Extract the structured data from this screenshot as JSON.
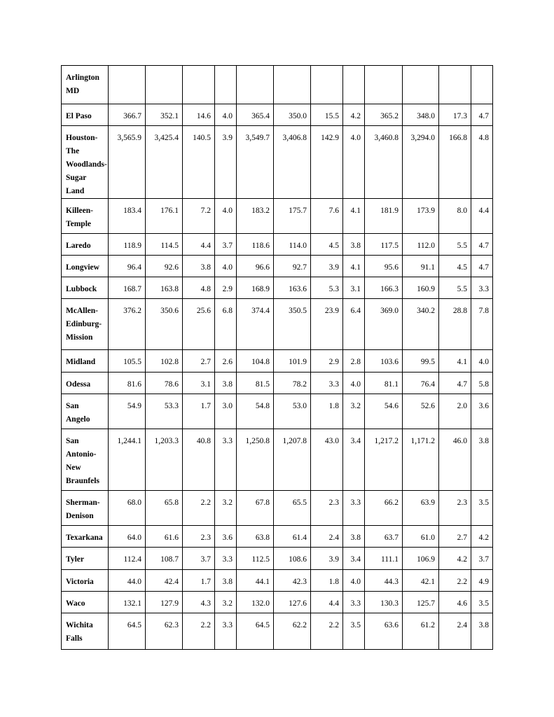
{
  "table": {
    "rows": [
      {
        "name": "Arlington MD",
        "values": [
          "",
          "",
          "",
          "",
          "",
          "",
          "",
          "",
          "",
          "",
          "",
          ""
        ]
      },
      {
        "name": "El Paso",
        "values": [
          "366.7",
          "352.1",
          "14.6",
          "4.0",
          "365.4",
          "350.0",
          "15.5",
          "4.2",
          "365.2",
          "348.0",
          "17.3",
          "4.7"
        ]
      },
      {
        "name": "Houston-The Woodlands-Sugar Land",
        "values": [
          "3,565.9",
          "3,425.4",
          "140.5",
          "3.9",
          "3,549.7",
          "3,406.8",
          "142.9",
          "4.0",
          "3,460.8",
          "3,294.0",
          "166.8",
          "4.8"
        ]
      },
      {
        "name": "Killeen-Temple",
        "values": [
          "183.4",
          "176.1",
          "7.2",
          "4.0",
          "183.2",
          "175.7",
          "7.6",
          "4.1",
          "181.9",
          "173.9",
          "8.0",
          "4.4"
        ]
      },
      {
        "name": "Laredo",
        "values": [
          "118.9",
          "114.5",
          "4.4",
          "3.7",
          "118.6",
          "114.0",
          "4.5",
          "3.8",
          "117.5",
          "112.0",
          "5.5",
          "4.7"
        ]
      },
      {
        "name": "Longview",
        "values": [
          "96.4",
          "92.6",
          "3.8",
          "4.0",
          "96.6",
          "92.7",
          "3.9",
          "4.1",
          "95.6",
          "91.1",
          "4.5",
          "4.7"
        ]
      },
      {
        "name": "Lubbock",
        "values": [
          "168.7",
          "163.8",
          "4.8",
          "2.9",
          "168.9",
          "163.6",
          "5.3",
          "3.1",
          "166.3",
          "160.9",
          "5.5",
          "3.3"
        ]
      },
      {
        "name": "McAllen-Edinburg-Mission",
        "values": [
          "376.2",
          "350.6",
          "25.6",
          "6.8",
          "374.4",
          "350.5",
          "23.9",
          "6.4",
          "369.0",
          "340.2",
          "28.8",
          "7.8"
        ]
      },
      {
        "name": "Midland",
        "values": [
          "105.5",
          "102.8",
          "2.7",
          "2.6",
          "104.8",
          "101.9",
          "2.9",
          "2.8",
          "103.6",
          "99.5",
          "4.1",
          "4.0"
        ]
      },
      {
        "name": "Odessa",
        "values": [
          "81.6",
          "78.6",
          "3.1",
          "3.8",
          "81.5",
          "78.2",
          "3.3",
          "4.0",
          "81.1",
          "76.4",
          "4.7",
          "5.8"
        ]
      },
      {
        "name": "San Angelo",
        "values": [
          "54.9",
          "53.3",
          "1.7",
          "3.0",
          "54.8",
          "53.0",
          "1.8",
          "3.2",
          "54.6",
          "52.6",
          "2.0",
          "3.6"
        ]
      },
      {
        "name": "San Antonio-New Braunfels",
        "values": [
          "1,244.1",
          "1,203.3",
          "40.8",
          "3.3",
          "1,250.8",
          "1,207.8",
          "43.0",
          "3.4",
          "1,217.2",
          "1,171.2",
          "46.0",
          "3.8"
        ]
      },
      {
        "name": "Sherman-Denison",
        "values": [
          "68.0",
          "65.8",
          "2.2",
          "3.2",
          "67.8",
          "65.5",
          "2.3",
          "3.3",
          "66.2",
          "63.9",
          "2.3",
          "3.5"
        ]
      },
      {
        "name": "Texarkana",
        "values": [
          "64.0",
          "61.6",
          "2.3",
          "3.6",
          "63.8",
          "61.4",
          "2.4",
          "3.8",
          "63.7",
          "61.0",
          "2.7",
          "4.2"
        ]
      },
      {
        "name": "Tyler",
        "values": [
          "112.4",
          "108.7",
          "3.7",
          "3.3",
          "112.5",
          "108.6",
          "3.9",
          "3.4",
          "111.1",
          "106.9",
          "4.2",
          "3.7"
        ]
      },
      {
        "name": "Victoria",
        "values": [
          "44.0",
          "42.4",
          "1.7",
          "3.8",
          "44.1",
          "42.3",
          "1.8",
          "4.0",
          "44.3",
          "42.1",
          "2.2",
          "4.9"
        ]
      },
      {
        "name": "Waco",
        "values": [
          "132.1",
          "127.9",
          "4.3",
          "3.2",
          "132.0",
          "127.6",
          "4.4",
          "3.3",
          "130.3",
          "125.7",
          "4.6",
          "3.5"
        ]
      },
      {
        "name": "Wichita Falls",
        "values": [
          "64.5",
          "62.3",
          "2.2",
          "3.3",
          "64.5",
          "62.2",
          "2.2",
          "3.5",
          "63.6",
          "61.2",
          "2.4",
          "3.8"
        ]
      }
    ]
  }
}
